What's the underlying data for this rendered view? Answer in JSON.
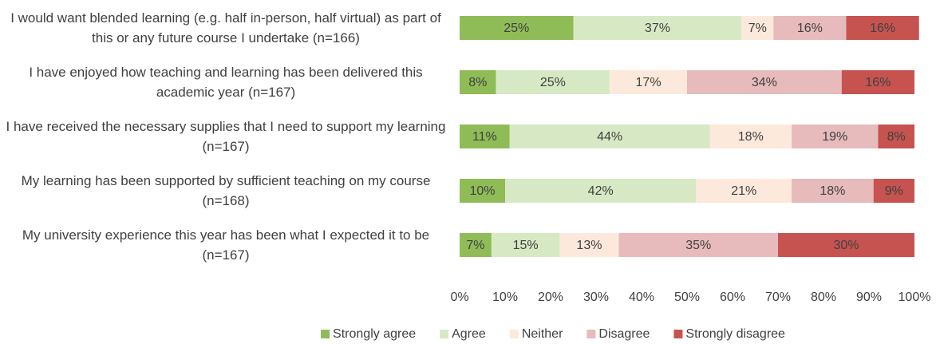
{
  "chart_data": {
    "type": "stacked_barh",
    "categories": [
      "I would want blended learning (e.g. half in-person, half virtual) as part of this or any future course I undertake (n=166)",
      "I have enjoyed how teaching and learning has been delivered this academic year (n=167)",
      "I have received the necessary supplies that I need to support my learning (n=167)",
      "My learning has been supported by sufficient teaching on my course (n=168)",
      "My university experience this year has been what I expected it to be (n=167)"
    ],
    "series": [
      {
        "name": "Strongly agree",
        "color": "#8fbc57",
        "values": [
          25,
          8,
          11,
          10,
          7
        ],
        "value_labels": [
          "25%",
          "8%",
          "11%",
          "10%",
          "7%"
        ]
      },
      {
        "name": "Agree",
        "color": "#d7e9c4",
        "values": [
          37,
          25,
          44,
          42,
          15
        ],
        "value_labels": [
          "37%",
          "25%",
          "44%",
          "42%",
          "15%"
        ]
      },
      {
        "name": "Neither",
        "color": "#fde9db",
        "values": [
          7,
          17,
          18,
          21,
          13
        ],
        "value_labels": [
          "7%",
          "17%",
          "18%",
          "21%",
          "13%"
        ]
      },
      {
        "name": "Disagree",
        "color": "#e7babb",
        "values": [
          16,
          34,
          19,
          18,
          35
        ],
        "value_labels": [
          "16%",
          "34%",
          "19%",
          "18%",
          "35%"
        ]
      },
      {
        "name": "Strongly disagree",
        "color": "#c65350",
        "values": [
          16,
          16,
          8,
          9,
          30
        ],
        "value_labels": [
          "16%",
          "16%",
          "8%",
          "9%",
          "30%"
        ]
      }
    ],
    "xlim": [
      0,
      100
    ],
    "xticks": [
      {
        "value": 0,
        "label": "0%"
      },
      {
        "value": 10,
        "label": "10%"
      },
      {
        "value": 20,
        "label": "20%"
      },
      {
        "value": 30,
        "label": "30%"
      },
      {
        "value": 40,
        "label": "40%"
      },
      {
        "value": 50,
        "label": "50%"
      },
      {
        "value": 60,
        "label": "60%"
      },
      {
        "value": 70,
        "label": "70%"
      },
      {
        "value": 80,
        "label": "80%"
      },
      {
        "value": 90,
        "label": "90%"
      },
      {
        "value": 100,
        "label": "100%"
      }
    ],
    "legend": "bottom"
  }
}
